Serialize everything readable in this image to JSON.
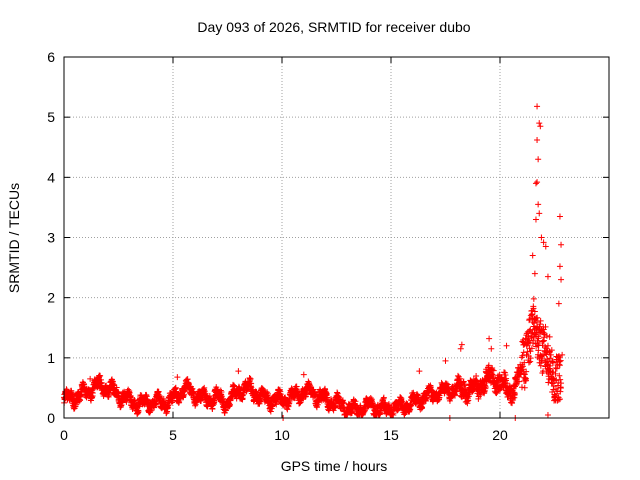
{
  "chart_data": {
    "type": "scatter",
    "title": "Day 093 of 2026, SRMTID for receiver dubo",
    "xlabel": "GPS time / hours",
    "ylabel": "SRMTID / TECUs",
    "xlim": [
      0,
      25
    ],
    "ylim": [
      0,
      6
    ],
    "xticks": [
      0,
      5,
      10,
      15,
      20
    ],
    "xtick_labels": [
      "0",
      "5",
      "10",
      "15",
      "20"
    ],
    "yticks": [
      0,
      1,
      2,
      3,
      4,
      5,
      6
    ],
    "ytick_labels": [
      "0",
      "1",
      "2",
      "3",
      "4",
      "5",
      "6"
    ],
    "grid": true,
    "marker": "+",
    "color": "#ff0000",
    "baseline_profile": [
      [
        0.0,
        0.3
      ],
      [
        0.5,
        0.35
      ],
      [
        1.0,
        0.42
      ],
      [
        1.5,
        0.55
      ],
      [
        2.0,
        0.5
      ],
      [
        2.5,
        0.38
      ],
      [
        3.0,
        0.3
      ],
      [
        3.5,
        0.22
      ],
      [
        4.0,
        0.28
      ],
      [
        4.5,
        0.25
      ],
      [
        5.0,
        0.3
      ],
      [
        5.5,
        0.5
      ],
      [
        6.0,
        0.4
      ],
      [
        6.5,
        0.3
      ],
      [
        7.0,
        0.35
      ],
      [
        7.5,
        0.25
      ],
      [
        8.0,
        0.45
      ],
      [
        8.5,
        0.5
      ],
      [
        9.0,
        0.35
      ],
      [
        9.5,
        0.3
      ],
      [
        10.0,
        0.3
      ],
      [
        10.5,
        0.35
      ],
      [
        11.0,
        0.45
      ],
      [
        11.5,
        0.4
      ],
      [
        12.0,
        0.3
      ],
      [
        12.5,
        0.25
      ],
      [
        13.0,
        0.15
      ],
      [
        13.5,
        0.15
      ],
      [
        14.0,
        0.2
      ],
      [
        14.5,
        0.15
      ],
      [
        15.0,
        0.15
      ],
      [
        15.5,
        0.18
      ],
      [
        16.0,
        0.25
      ],
      [
        16.5,
        0.35
      ],
      [
        17.0,
        0.4
      ],
      [
        17.5,
        0.45
      ],
      [
        18.0,
        0.5
      ],
      [
        18.5,
        0.45
      ],
      [
        19.0,
        0.5
      ],
      [
        19.5,
        0.7
      ],
      [
        20.0,
        0.6
      ],
      [
        20.5,
        0.4
      ],
      [
        21.0,
        0.8
      ],
      [
        21.5,
        1.5
      ],
      [
        22.0,
        1.2
      ],
      [
        22.5,
        0.6
      ],
      [
        22.8,
        0.8
      ]
    ],
    "outliers": [
      {
        "x": 21.7,
        "y": 5.18
      },
      {
        "x": 21.8,
        "y": 4.9
      },
      {
        "x": 21.85,
        "y": 4.85
      },
      {
        "x": 21.7,
        "y": 4.62
      },
      {
        "x": 21.75,
        "y": 4.3
      },
      {
        "x": 21.7,
        "y": 3.92
      },
      {
        "x": 21.65,
        "y": 3.9
      },
      {
        "x": 21.75,
        "y": 3.55
      },
      {
        "x": 21.8,
        "y": 3.4
      },
      {
        "x": 21.65,
        "y": 3.3
      },
      {
        "x": 21.9,
        "y": 3.0
      },
      {
        "x": 22.0,
        "y": 2.92
      },
      {
        "x": 22.1,
        "y": 2.85
      },
      {
        "x": 21.5,
        "y": 2.7
      },
      {
        "x": 21.6,
        "y": 2.4
      },
      {
        "x": 22.2,
        "y": 2.35
      },
      {
        "x": 22.75,
        "y": 3.35
      },
      {
        "x": 22.8,
        "y": 2.88
      },
      {
        "x": 22.75,
        "y": 2.52
      },
      {
        "x": 22.8,
        "y": 2.3
      },
      {
        "x": 22.7,
        "y": 1.9
      },
      {
        "x": 22.85,
        "y": 1.05
      },
      {
        "x": 18.25,
        "y": 1.22
      },
      {
        "x": 18.2,
        "y": 1.15
      },
      {
        "x": 19.5,
        "y": 1.32
      },
      {
        "x": 19.6,
        "y": 1.15
      },
      {
        "x": 20.3,
        "y": 1.2
      },
      {
        "x": 17.5,
        "y": 0.95
      },
      {
        "x": 16.3,
        "y": 0.78
      },
      {
        "x": 1.2,
        "y": 0.65
      },
      {
        "x": 8.0,
        "y": 0.78
      },
      {
        "x": 5.2,
        "y": 0.68
      },
      {
        "x": 11.0,
        "y": 0.72
      }
    ],
    "zero_points": [
      {
        "x": 10.05,
        "y": 0.0
      },
      {
        "x": 17.7,
        "y": 0.0
      },
      {
        "x": 20.7,
        "y": 0.0
      },
      {
        "x": 22.2,
        "y": 0.05
      }
    ]
  }
}
